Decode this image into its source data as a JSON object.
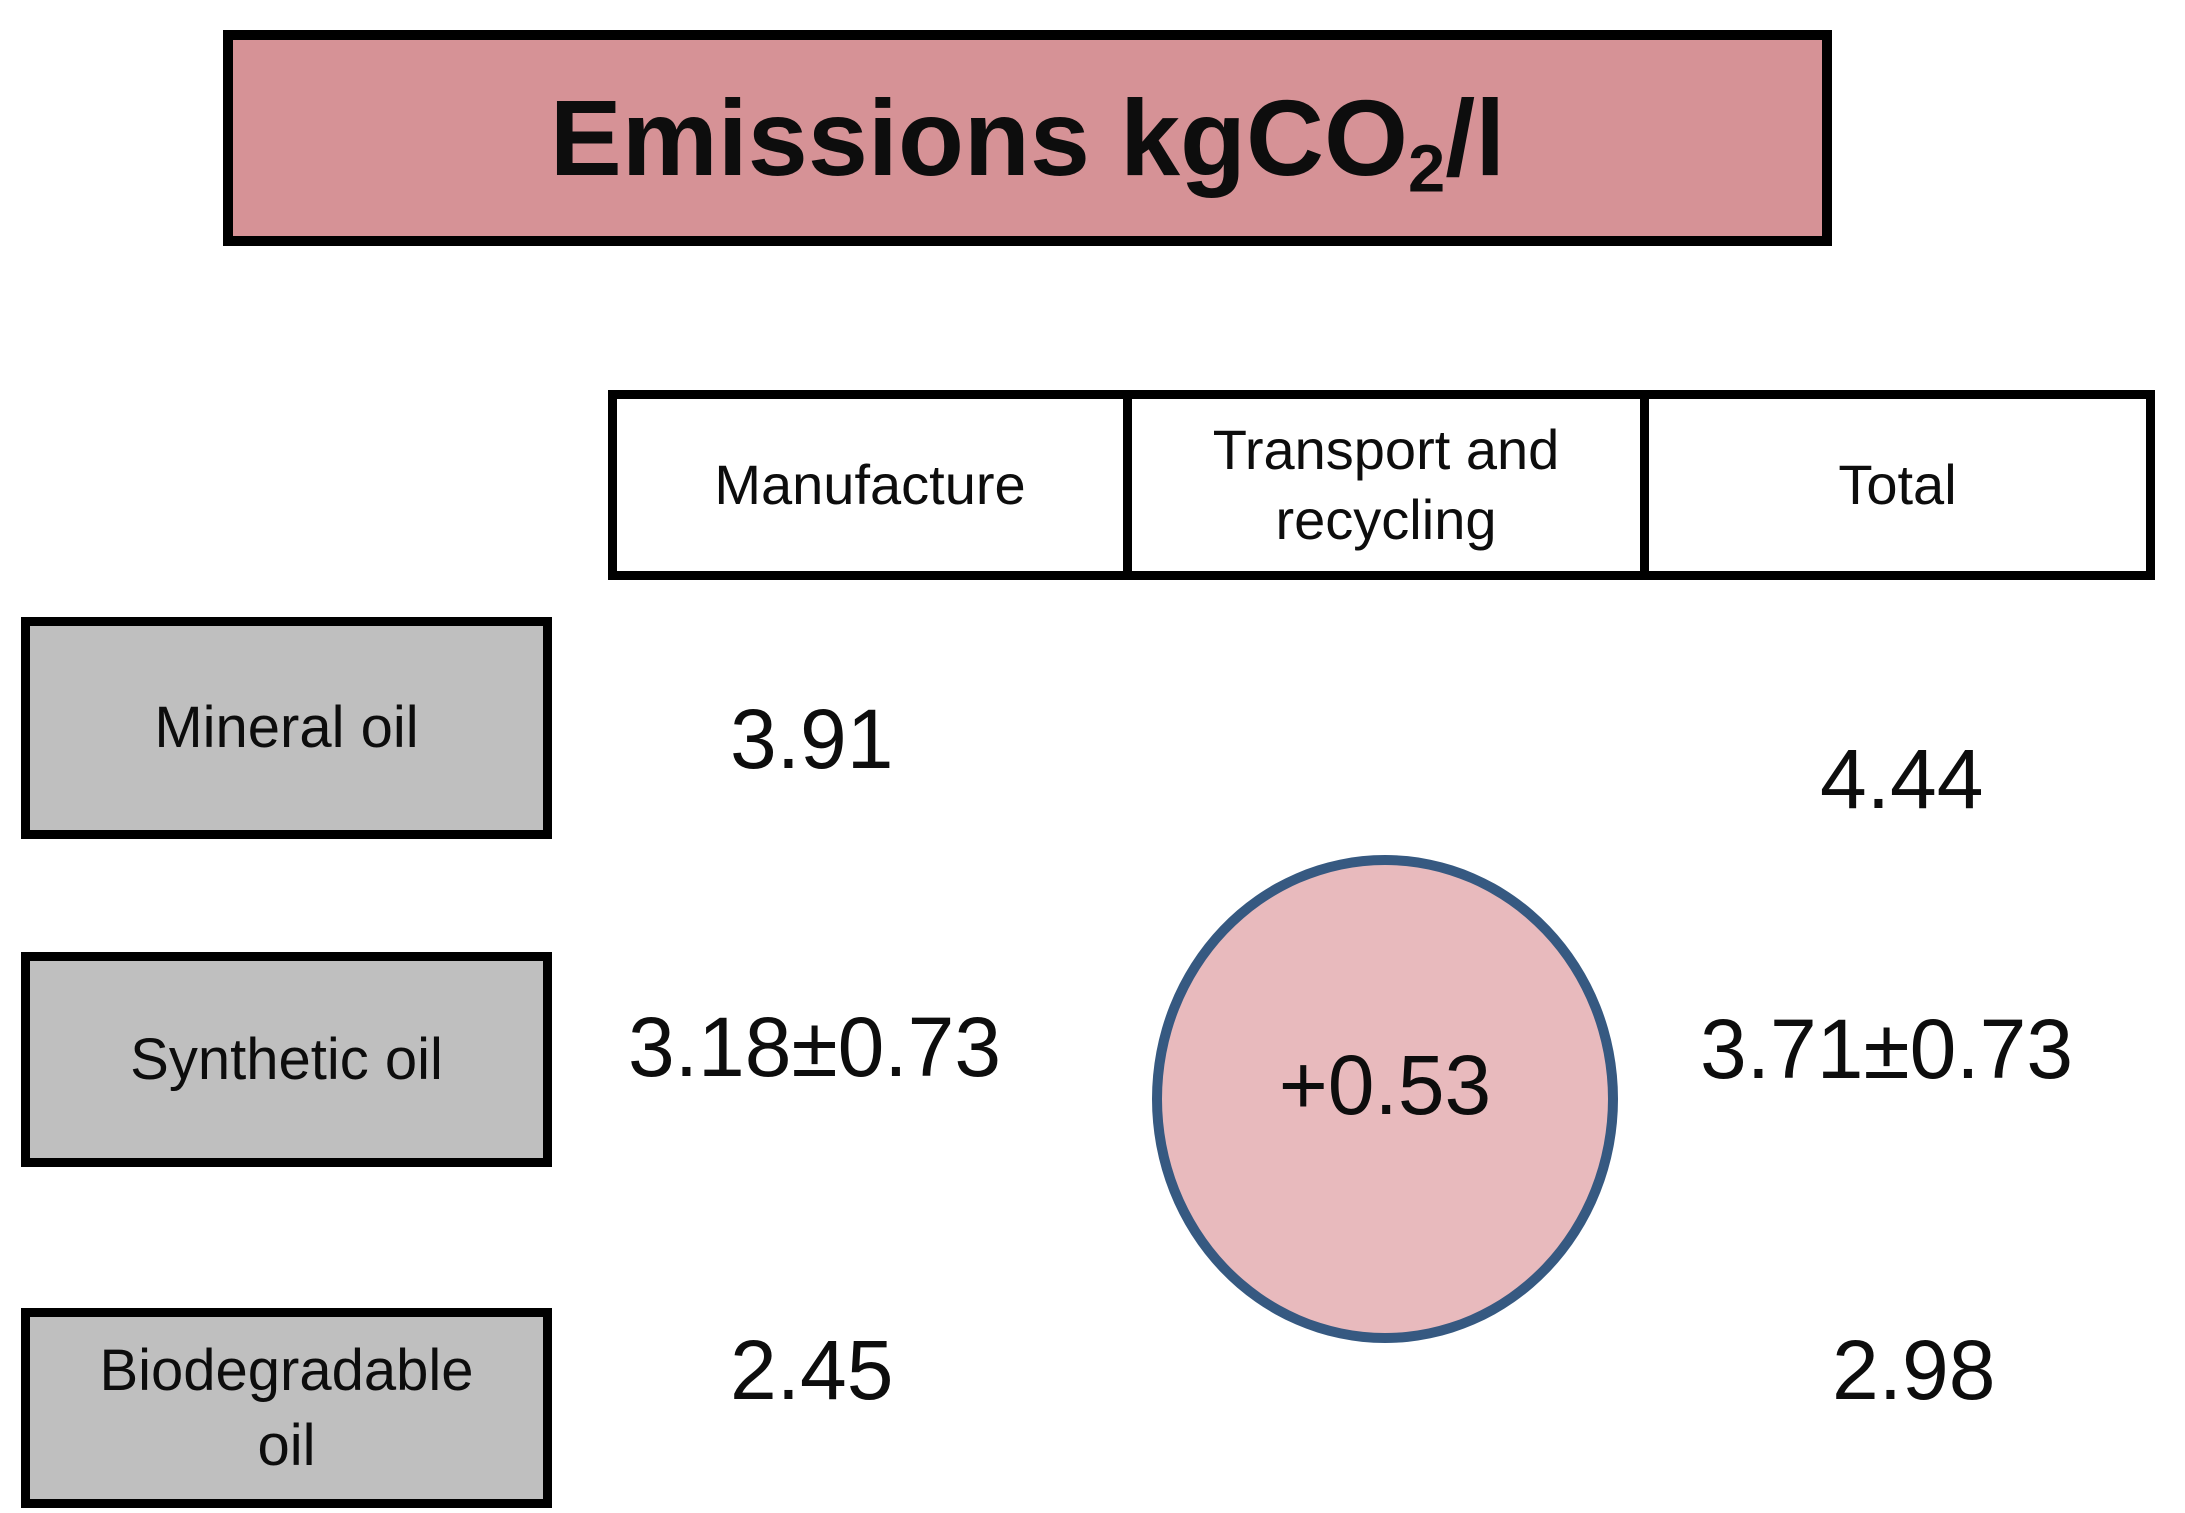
{
  "title": {
    "prefix": "Emissions kgCO",
    "subscript": "2",
    "suffix": "/l"
  },
  "table": {
    "column_headers": [
      "Manufacture",
      "Transport and recycling",
      "Total"
    ],
    "rows": [
      {
        "label": "Mineral oil",
        "manufacture": "3.91",
        "total": "4.44"
      },
      {
        "label": "Synthetic oil",
        "manufacture": "3.18±0.73",
        "total": "3.71±0.73"
      },
      {
        "label": "Biodegradable oil",
        "manufacture": "2.45",
        "total": "2.98"
      }
    ]
  },
  "circle": {
    "value": "+0.53"
  },
  "colors": {
    "title_fill": "#d69296",
    "circle_fill": "#e8babd",
    "circle_border": "#365981",
    "label_fill": "#bfbfbf",
    "border_black": "#000000"
  }
}
